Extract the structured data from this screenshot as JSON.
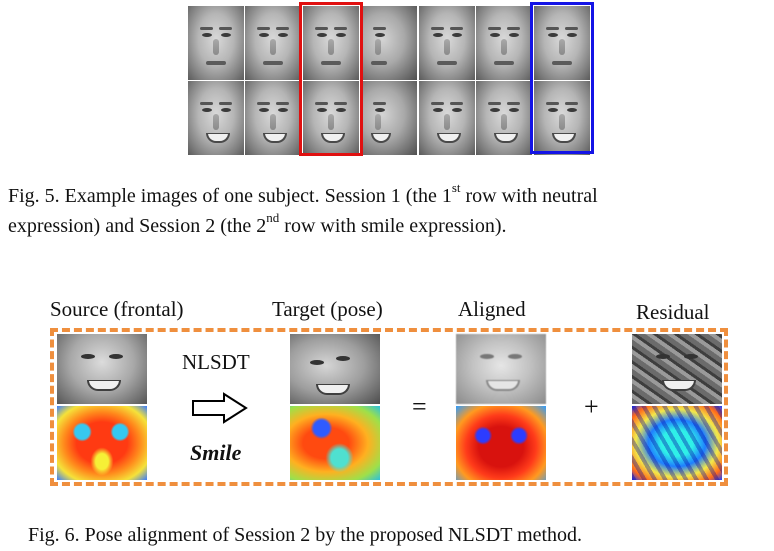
{
  "fig5": {
    "rows": [
      {
        "expression": "neutral",
        "faces": [
          "frontal-1",
          "frontal-2",
          "frontal-3",
          "turned-1",
          "frontal-4",
          "frontal-5",
          "frontal-6"
        ]
      },
      {
        "expression": "smile",
        "faces": [
          "frontal-1",
          "frontal-2",
          "frontal-3",
          "turned-1",
          "frontal-4",
          "frontal-5",
          "frontal-6"
        ]
      }
    ],
    "highlight_colors": {
      "red": "#e01010",
      "blue": "#1414e6"
    },
    "caption": {
      "line1_a": "Fig. 5.   Example images of one subject. Session 1 (the 1",
      "line1_sup": "st",
      "line1_b": " row with neutral",
      "line2_a": "expression) and Session 2 (the 2",
      "line2_sup": "nd",
      "line2_b": " row with smile expression)."
    }
  },
  "fig6": {
    "labels": {
      "source": "Source (frontal)",
      "target": "Target (pose)",
      "aligned": "Aligned",
      "residual": "Residual"
    },
    "operator": "NLSDT",
    "condition": "Smile",
    "equals": "=",
    "plus": "+",
    "frame_color": "#ef8f3e",
    "caption": "Fig. 6.   Pose alignment of Session 2 by the proposed NLSDT method."
  }
}
